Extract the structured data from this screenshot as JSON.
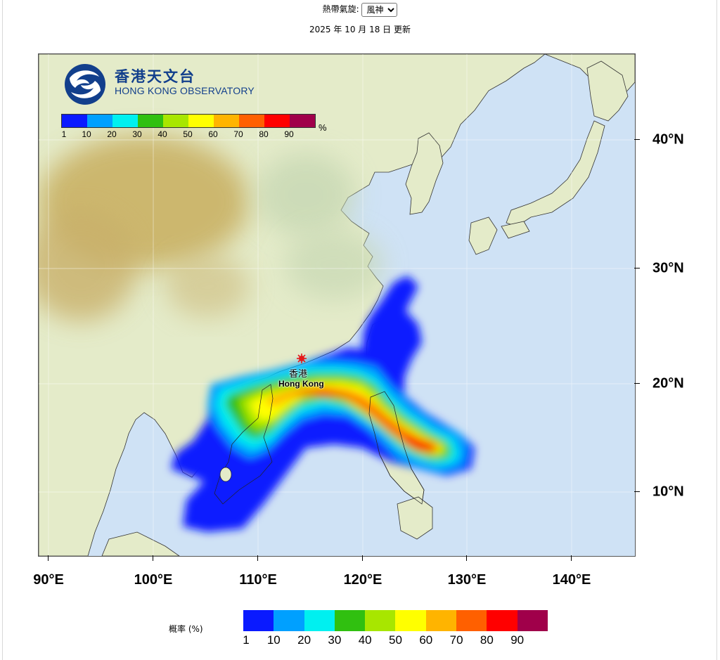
{
  "header": {
    "storm_label": "熱帶氣旋:",
    "storm_selected": "風神",
    "update_text": "2025 年 10 月 18 日 更新"
  },
  "logo": {
    "name_zh": "香港天文台",
    "name_en": "HONG KONG OBSERVATORY"
  },
  "legend": {
    "unit": "%",
    "title": "概率 (%)",
    "labels": [
      "1",
      "10",
      "20",
      "30",
      "40",
      "50",
      "60",
      "70",
      "80",
      "90"
    ],
    "colors": [
      "#0a1aff",
      "#00a0ff",
      "#00f0f0",
      "#30c010",
      "#a8e600",
      "#ffff00",
      "#ffb400",
      "#ff6000",
      "#ff0000",
      "#a0004a"
    ]
  },
  "map": {
    "latitude_labels": [
      "40°N",
      "30°N",
      "20°N",
      "10°N"
    ],
    "longitude_labels": [
      "90°E",
      "100°E",
      "110°E",
      "120°E",
      "130°E",
      "140°E"
    ],
    "marker": {
      "label_zh": "香港",
      "label_en": "Hong Kong"
    },
    "colors": {
      "ocean": "#cfe2f5",
      "land": "#e4ebc9",
      "highland": "#c8ae5e"
    }
  }
}
